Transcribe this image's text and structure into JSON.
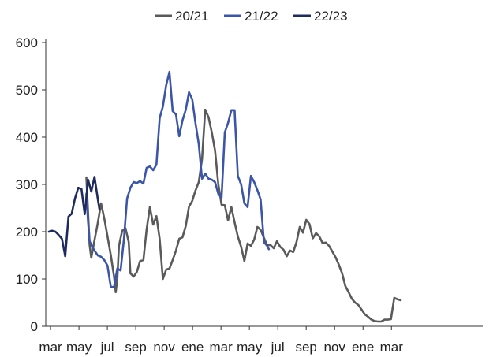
{
  "chart_data": {
    "type": "line",
    "title": "",
    "xlabel": "",
    "ylabel": "",
    "ylim": [
      0,
      600
    ],
    "yticks": [
      0,
      100,
      200,
      300,
      400,
      500,
      600
    ],
    "x_tick_labels": [
      "mar",
      "may",
      "jul",
      "sep",
      "nov",
      "ene",
      "mar",
      "may",
      "jul",
      "sep",
      "nov",
      "ene",
      "mar"
    ],
    "x_unit": "weeks since start of March (first year)",
    "xlim": [
      0,
      130
    ],
    "grid": false,
    "legend_position": "top",
    "series": [
      {
        "name": "20/21",
        "color": "#5a5a5a",
        "points": [
          [
            11.5,
            315
          ],
          [
            12.5,
            172
          ],
          [
            13,
            145
          ],
          [
            14,
            182
          ],
          [
            15,
            218
          ],
          [
            16,
            260
          ],
          [
            17,
            228
          ],
          [
            18,
            190
          ],
          [
            19,
            150
          ],
          [
            20,
            105
          ],
          [
            20.5,
            72
          ],
          [
            21,
            100
          ],
          [
            21.5,
            170
          ],
          [
            22.5,
            202
          ],
          [
            23.5,
            207
          ],
          [
            24.5,
            178
          ],
          [
            25,
            112
          ],
          [
            26,
            105
          ],
          [
            27,
            115
          ],
          [
            28,
            138
          ],
          [
            29,
            140
          ],
          [
            30,
            205
          ],
          [
            31,
            252
          ],
          [
            32,
            215
          ],
          [
            33,
            233
          ],
          [
            34,
            185
          ],
          [
            35,
            100
          ],
          [
            36,
            120
          ],
          [
            37,
            122
          ],
          [
            38,
            140
          ],
          [
            39,
            160
          ],
          [
            40,
            185
          ],
          [
            41,
            188
          ],
          [
            42,
            212
          ],
          [
            43,
            253
          ],
          [
            44,
            265
          ],
          [
            45,
            287
          ],
          [
            46,
            305
          ],
          [
            47,
            353
          ],
          [
            48,
            458
          ],
          [
            49,
            442
          ],
          [
            50,
            410
          ],
          [
            51,
            372
          ],
          [
            52,
            300
          ],
          [
            53,
            257
          ],
          [
            54,
            256
          ],
          [
            55,
            224
          ],
          [
            56,
            252
          ],
          [
            57,
            220
          ],
          [
            58,
            190
          ],
          [
            59,
            168
          ],
          [
            60,
            138
          ],
          [
            61,
            175
          ],
          [
            62,
            170
          ],
          [
            63,
            183
          ],
          [
            64,
            210
          ],
          [
            65,
            204
          ],
          [
            66,
            187
          ],
          [
            67,
            171
          ],
          [
            68,
            172
          ],
          [
            69,
            165
          ],
          [
            70,
            180
          ],
          [
            71,
            168
          ],
          [
            72,
            162
          ],
          [
            73,
            148
          ],
          [
            74,
            160
          ],
          [
            75,
            157
          ],
          [
            76,
            178
          ],
          [
            77,
            210
          ],
          [
            78,
            198
          ],
          [
            79,
            225
          ],
          [
            80,
            216
          ],
          [
            81,
            186
          ],
          [
            82,
            197
          ],
          [
            83,
            190
          ],
          [
            84,
            176
          ],
          [
            85,
            177
          ],
          [
            86,
            170
          ],
          [
            87,
            158
          ],
          [
            88,
            146
          ],
          [
            89,
            130
          ],
          [
            90,
            112
          ],
          [
            91,
            85
          ],
          [
            92,
            72
          ],
          [
            93,
            58
          ],
          [
            94,
            50
          ],
          [
            95,
            45
          ],
          [
            96,
            35
          ],
          [
            97,
            25
          ],
          [
            98,
            20
          ],
          [
            99,
            14
          ],
          [
            100,
            11
          ],
          [
            101,
            10
          ],
          [
            102,
            10
          ],
          [
            103,
            14
          ],
          [
            104,
            14
          ],
          [
            105,
            15
          ],
          [
            106,
            60
          ],
          [
            107,
            57
          ],
          [
            108,
            55
          ]
        ]
      },
      {
        "name": "21/22",
        "color": "#3b55a8",
        "points": [
          [
            11.5,
            280
          ],
          [
            12,
            222
          ],
          [
            12.5,
            180
          ],
          [
            13,
            172
          ],
          [
            14,
            160
          ],
          [
            15,
            150
          ],
          [
            16,
            147
          ],
          [
            17,
            140
          ],
          [
            18,
            128
          ],
          [
            19,
            83
          ],
          [
            20,
            83
          ],
          [
            21,
            122
          ],
          [
            22,
            118
          ],
          [
            23,
            182
          ],
          [
            24,
            270
          ],
          [
            25,
            293
          ],
          [
            26,
            305
          ],
          [
            27,
            303
          ],
          [
            28,
            307
          ],
          [
            29,
            302
          ],
          [
            30,
            335
          ],
          [
            31,
            338
          ],
          [
            32,
            330
          ],
          [
            33,
            342
          ],
          [
            34,
            440
          ],
          [
            35,
            465
          ],
          [
            36,
            510
          ],
          [
            37,
            538
          ],
          [
            38,
            455
          ],
          [
            39,
            448
          ],
          [
            40,
            402
          ],
          [
            41,
            435
          ],
          [
            42,
            458
          ],
          [
            43,
            495
          ],
          [
            44,
            480
          ],
          [
            45,
            430
          ],
          [
            46,
            385
          ],
          [
            47,
            312
          ],
          [
            48,
            323
          ],
          [
            49,
            312
          ],
          [
            50,
            310
          ],
          [
            51,
            305
          ],
          [
            52,
            280
          ],
          [
            53,
            272
          ],
          [
            54,
            410
          ],
          [
            55,
            430
          ],
          [
            56,
            457
          ],
          [
            57,
            457
          ],
          [
            58,
            318
          ],
          [
            59,
            300
          ],
          [
            60,
            260
          ],
          [
            61,
            252
          ],
          [
            62,
            318
          ],
          [
            63,
            305
          ],
          [
            64,
            288
          ],
          [
            65,
            268
          ],
          [
            66,
            178
          ],
          [
            67,
            170
          ],
          [
            67.5,
            163
          ]
        ]
      },
      {
        "name": "22/23",
        "color": "#1f2a5e",
        "points": [
          [
            0,
            200
          ],
          [
            1,
            202
          ],
          [
            2,
            200
          ],
          [
            3,
            193
          ],
          [
            4,
            185
          ],
          [
            5,
            148
          ],
          [
            6,
            232
          ],
          [
            7,
            238
          ],
          [
            8,
            270
          ],
          [
            9,
            293
          ],
          [
            10,
            290
          ],
          [
            11,
            237
          ],
          [
            12,
            310
          ],
          [
            13,
            285
          ],
          [
            14,
            316
          ],
          [
            15,
            270
          ],
          [
            15.5,
            248
          ]
        ]
      }
    ]
  }
}
